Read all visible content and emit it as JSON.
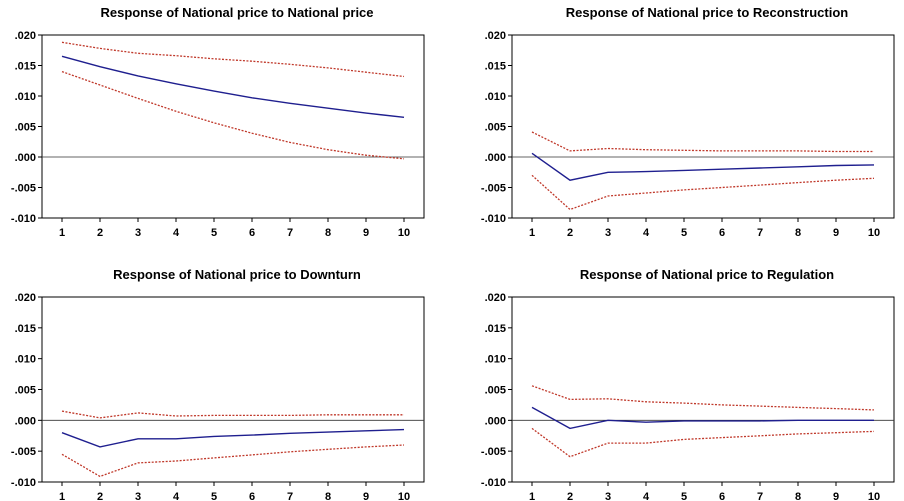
{
  "chart_data": [
    {
      "type": "line",
      "title": "Response of National price to National price",
      "x": [
        1,
        2,
        3,
        4,
        5,
        6,
        7,
        8,
        9,
        10
      ],
      "xticks": [
        "1",
        "2",
        "3",
        "4",
        "5",
        "6",
        "7",
        "8",
        "9",
        "10"
      ],
      "ylim": [
        -0.01,
        0.02
      ],
      "yticks": [
        ".020",
        ".015",
        ".010",
        ".005",
        ".000",
        "-.005",
        "-.010"
      ],
      "zero_line": true,
      "series": [
        {
          "role": "response",
          "style": "solid",
          "color": "#1f1f8f",
          "values": [
            0.0165,
            0.0148,
            0.0133,
            0.012,
            0.0108,
            0.0097,
            0.0088,
            0.008,
            0.0072,
            0.0065
          ]
        },
        {
          "role": "upper",
          "style": "dotted",
          "color": "#c0392b",
          "values": [
            0.0188,
            0.0178,
            0.017,
            0.0166,
            0.0161,
            0.0157,
            0.0152,
            0.0146,
            0.0139,
            0.0132
          ]
        },
        {
          "role": "lower",
          "style": "dotted",
          "color": "#c0392b",
          "values": [
            0.014,
            0.0118,
            0.0096,
            0.0075,
            0.0056,
            0.0039,
            0.0024,
            0.0012,
            0.0003,
            -0.0003
          ]
        }
      ]
    },
    {
      "type": "line",
      "title": "Response of National price to Reconstruction",
      "x": [
        1,
        2,
        3,
        4,
        5,
        6,
        7,
        8,
        9,
        10
      ],
      "xticks": [
        "1",
        "2",
        "3",
        "4",
        "5",
        "6",
        "7",
        "8",
        "9",
        "10"
      ],
      "ylim": [
        -0.01,
        0.02
      ],
      "yticks": [
        ".020",
        ".015",
        ".010",
        ".005",
        ".000",
        "-.005",
        "-.010"
      ],
      "zero_line": true,
      "series": [
        {
          "role": "response",
          "style": "solid",
          "color": "#1f1f8f",
          "values": [
            0.0006,
            -0.0038,
            -0.0025,
            -0.0024,
            -0.0022,
            -0.002,
            -0.0018,
            -0.0016,
            -0.0014,
            -0.0013
          ]
        },
        {
          "role": "upper",
          "style": "dotted",
          "color": "#c0392b",
          "values": [
            0.0041,
            0.001,
            0.0014,
            0.0012,
            0.0011,
            0.001,
            0.001,
            0.001,
            0.0009,
            0.0009
          ]
        },
        {
          "role": "lower",
          "style": "dotted",
          "color": "#c0392b",
          "values": [
            -0.003,
            -0.0086,
            -0.0064,
            -0.0059,
            -0.0054,
            -0.005,
            -0.0046,
            -0.0042,
            -0.0038,
            -0.0035
          ]
        }
      ]
    },
    {
      "type": "line",
      "title": "Response of National price to Downturn",
      "x": [
        1,
        2,
        3,
        4,
        5,
        6,
        7,
        8,
        9,
        10
      ],
      "xticks": [
        "1",
        "2",
        "3",
        "4",
        "5",
        "6",
        "7",
        "8",
        "9",
        "10"
      ],
      "ylim": [
        -0.01,
        0.02
      ],
      "yticks": [
        ".020",
        ".015",
        ".010",
        ".005",
        ".000",
        "-.005",
        "-.010"
      ],
      "zero_line": true,
      "series": [
        {
          "role": "response",
          "style": "solid",
          "color": "#1f1f8f",
          "values": [
            -0.002,
            -0.0043,
            -0.003,
            -0.003,
            -0.0026,
            -0.0024,
            -0.0021,
            -0.0019,
            -0.0017,
            -0.0015
          ]
        },
        {
          "role": "upper",
          "style": "dotted",
          "color": "#c0392b",
          "values": [
            0.0015,
            0.0004,
            0.0012,
            0.0007,
            0.0008,
            0.0008,
            0.0008,
            0.0009,
            0.0009,
            0.0009
          ]
        },
        {
          "role": "lower",
          "style": "dotted",
          "color": "#c0392b",
          "values": [
            -0.0055,
            -0.0091,
            -0.0069,
            -0.0066,
            -0.0061,
            -0.0056,
            -0.0051,
            -0.0047,
            -0.0043,
            -0.004
          ]
        }
      ]
    },
    {
      "type": "line",
      "title": "Response of National price to Regulation",
      "x": [
        1,
        2,
        3,
        4,
        5,
        6,
        7,
        8,
        9,
        10
      ],
      "xticks": [
        "1",
        "2",
        "3",
        "4",
        "5",
        "6",
        "7",
        "8",
        "9",
        "10"
      ],
      "ylim": [
        -0.01,
        0.02
      ],
      "yticks": [
        ".020",
        ".015",
        ".010",
        ".005",
        ".000",
        "-.005",
        "-.010"
      ],
      "zero_line": true,
      "series": [
        {
          "role": "response",
          "style": "solid",
          "color": "#1f1f8f",
          "values": [
            0.0021,
            -0.0013,
            0.0,
            -0.0003,
            -0.0001,
            -0.0001,
            -0.0001,
            0.0,
            0.0,
            0.0
          ]
        },
        {
          "role": "upper",
          "style": "dotted",
          "color": "#c0392b",
          "values": [
            0.0056,
            0.0034,
            0.0035,
            0.003,
            0.0028,
            0.0025,
            0.0023,
            0.0021,
            0.0019,
            0.0017
          ]
        },
        {
          "role": "lower",
          "style": "dotted",
          "color": "#c0392b",
          "values": [
            -0.0013,
            -0.0059,
            -0.0037,
            -0.0037,
            -0.0031,
            -0.0028,
            -0.0025,
            -0.0022,
            -0.002,
            -0.0018
          ]
        }
      ]
    }
  ]
}
